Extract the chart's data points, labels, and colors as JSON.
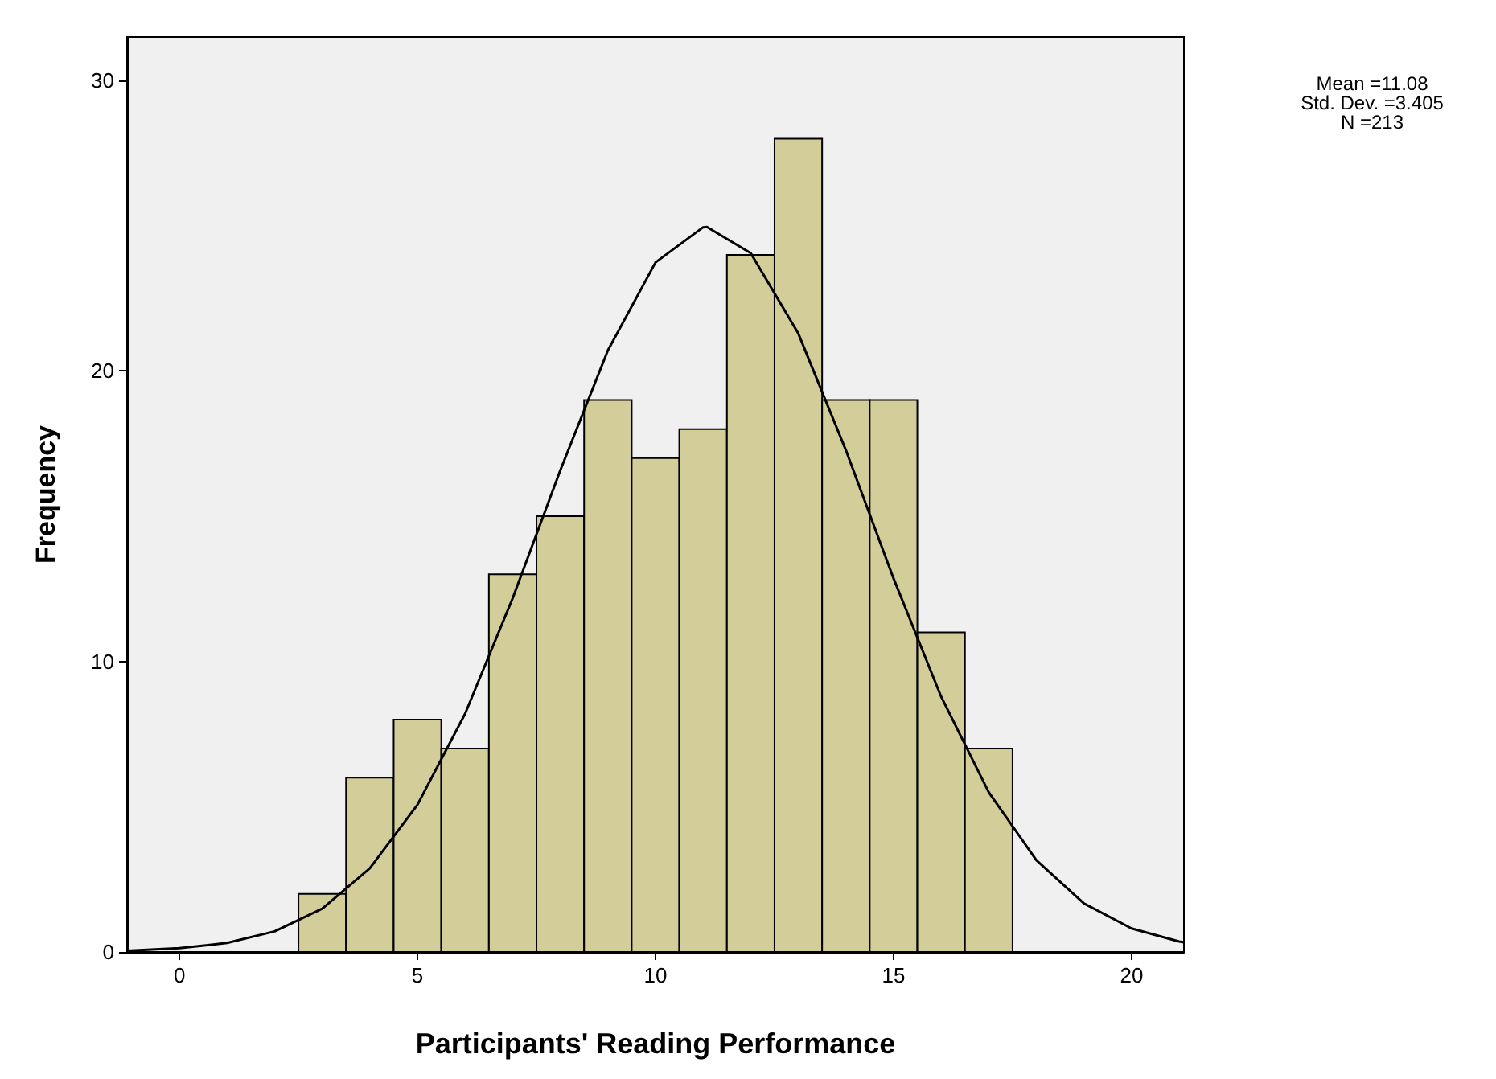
{
  "chart_data": {
    "type": "histogram",
    "xlabel": "Participants' Reading Performance",
    "ylabel": "Frequency",
    "bins": [
      2.5,
      3.5,
      4.5,
      5.5,
      6.5,
      7.5,
      8.5,
      9.5,
      10.5,
      11.5,
      12.5,
      13.5,
      14.5,
      15.5,
      16.5,
      17.5
    ],
    "values": [
      2,
      6,
      8,
      7,
      13,
      15,
      19,
      17,
      18,
      24,
      28,
      19,
      19,
      11,
      7
    ],
    "color": "#d3cd9a",
    "series": [
      {
        "type": "line",
        "color": "#000000",
        "marker": "none",
        "x": [
          -1.1,
          0,
          1,
          2,
          3,
          4,
          5,
          6,
          7,
          8,
          9,
          10,
          11,
          11.08,
          12,
          13,
          14,
          15,
          16,
          17,
          18,
          19,
          20,
          21,
          21.1
        ],
        "values": [
          0.04,
          0.13,
          0.31,
          0.71,
          1.49,
          2.88,
          5.07,
          8.2,
          12.18,
          16.58,
          20.71,
          23.74,
          24.95,
          24.96,
          24.06,
          21.29,
          17.27,
          12.86,
          8.79,
          5.5,
          3.16,
          1.67,
          0.81,
          0.36,
          0.33
        ]
      }
    ],
    "xlim": [
      -1.1,
      21.1
    ],
    "xticks": [
      0,
      5,
      10,
      15,
      20
    ],
    "ylim": [
      0,
      31.5
    ],
    "yticks": [
      0,
      10,
      20,
      30
    ],
    "grid": false,
    "annotations": [
      "Mean =11.08",
      "Std. Dev. =3.405",
      "N =213"
    ]
  }
}
